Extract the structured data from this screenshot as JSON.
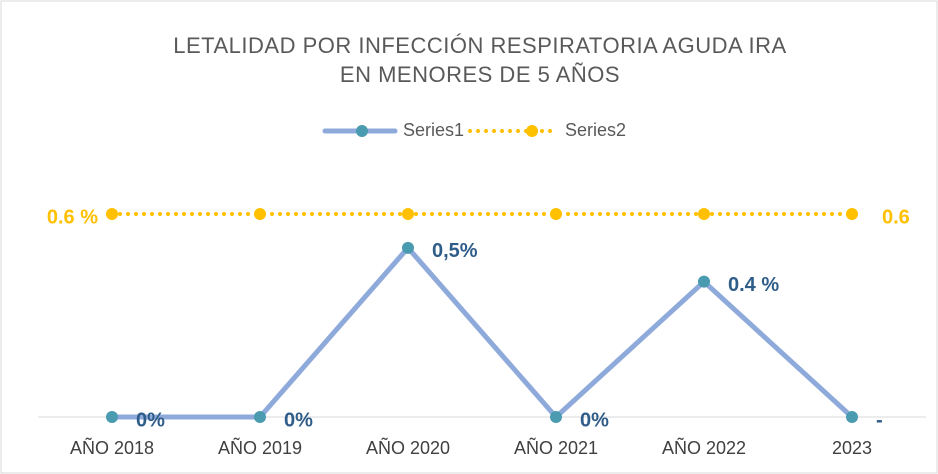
{
  "chart_data": {
    "type": "line",
    "title": [
      "LETALIDAD POR INFECCIÓN RESPIRATORIA AGUDA IRA",
      "EN MENORES DE 5 AÑOS"
    ],
    "categories": [
      "AÑO 2018",
      "AÑO 2019",
      "AÑO 2020",
      "AÑO 2021",
      "AÑO 2022",
      "2023"
    ],
    "ylim": [
      0,
      0.6
    ],
    "legend": "top",
    "series": [
      {
        "name": "Series1",
        "color": "#8eaadb",
        "marker_color": "#4a9ab0",
        "label_color": "#2f5d8a",
        "values": [
          0,
          0,
          0.5,
          0,
          0.4,
          0
        ],
        "value_labels": [
          "0%",
          "0%",
          "0,5%",
          "0%",
          "0.4 %",
          "-"
        ]
      },
      {
        "name": "Series2",
        "color": "#ffc000",
        "marker_color": "#ffc000",
        "label_color": "#ffc000",
        "dotted": true,
        "values": [
          0.6,
          0.6,
          0.6,
          0.6,
          0.6,
          0.6
        ],
        "value_labels": [
          "0.6 %",
          null,
          null,
          null,
          null,
          "0.6"
        ]
      }
    ]
  }
}
